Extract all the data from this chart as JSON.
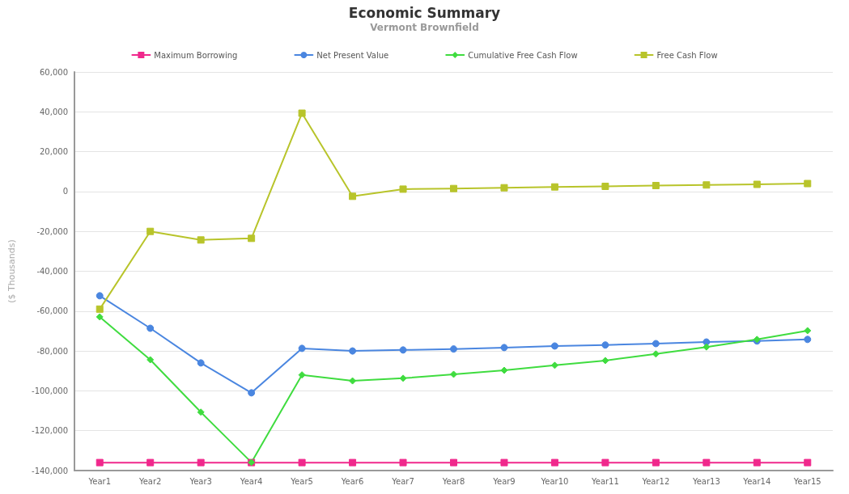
{
  "chart_data": {
    "type": "line",
    "title": "Economic Summary",
    "subtitle": "Vermont Brownfield",
    "ylabel": "($ Thousands)",
    "categories": [
      "Year1",
      "Year2",
      "Year3",
      "Year4",
      "Year5",
      "Year6",
      "Year7",
      "Year8",
      "Year9",
      "Year10",
      "Year11",
      "Year12",
      "Year13",
      "Year14",
      "Year15"
    ],
    "series": [
      {
        "name": "Maximum Borrowing",
        "color": "#f0288c",
        "marker": "square",
        "values": [
          -136000,
          -136000,
          -136000,
          -136000,
          -136000,
          -136000,
          -136000,
          -136000,
          -136000,
          -136000,
          -136000,
          -136000,
          -136000,
          -136000,
          -136000
        ]
      },
      {
        "name": "Net Present Value",
        "color": "#4a86e0",
        "marker": "circle",
        "values": [
          -52300,
          -68600,
          -86000,
          -101000,
          -78700,
          -80000,
          -79500,
          -79000,
          -78300,
          -77500,
          -77000,
          -76300,
          -75500,
          -75000,
          -74200
        ]
      },
      {
        "name": "Cumulative Free Cash Flow",
        "color": "#3fdc3f",
        "marker": "diamond",
        "values": [
          -62900,
          -84400,
          -110700,
          -135900,
          -92000,
          -95000,
          -93700,
          -91700,
          -89700,
          -87200,
          -84800,
          -81500,
          -78000,
          -74200,
          -69800
        ]
      },
      {
        "name": "Free Cash Flow",
        "color": "#b8c42a",
        "marker": "square",
        "values": [
          -59000,
          -20000,
          -24300,
          -23500,
          39300,
          -2400,
          1200,
          1500,
          1900,
          2300,
          2600,
          3000,
          3300,
          3600,
          4000
        ]
      }
    ],
    "ylim": [
      -140000,
      60000
    ],
    "yticks": [
      {
        "value": -140000,
        "label": "-140,000"
      },
      {
        "value": -120000,
        "label": "-120,000"
      },
      {
        "value": -100000,
        "label": "-100,000"
      },
      {
        "value": -80000,
        "label": "-80,000"
      },
      {
        "value": -60000,
        "label": "-60,000"
      },
      {
        "value": -40000,
        "label": "-40,000"
      },
      {
        "value": -20000,
        "label": "-20,000"
      },
      0,
      {
        "value": 20000,
        "label": "20,000"
      },
      {
        "value": 40000,
        "label": "40,000"
      },
      {
        "value": 60000,
        "label": "60,000"
      }
    ],
    "grid": "y",
    "legend": "top",
    "line_style": "solid"
  }
}
